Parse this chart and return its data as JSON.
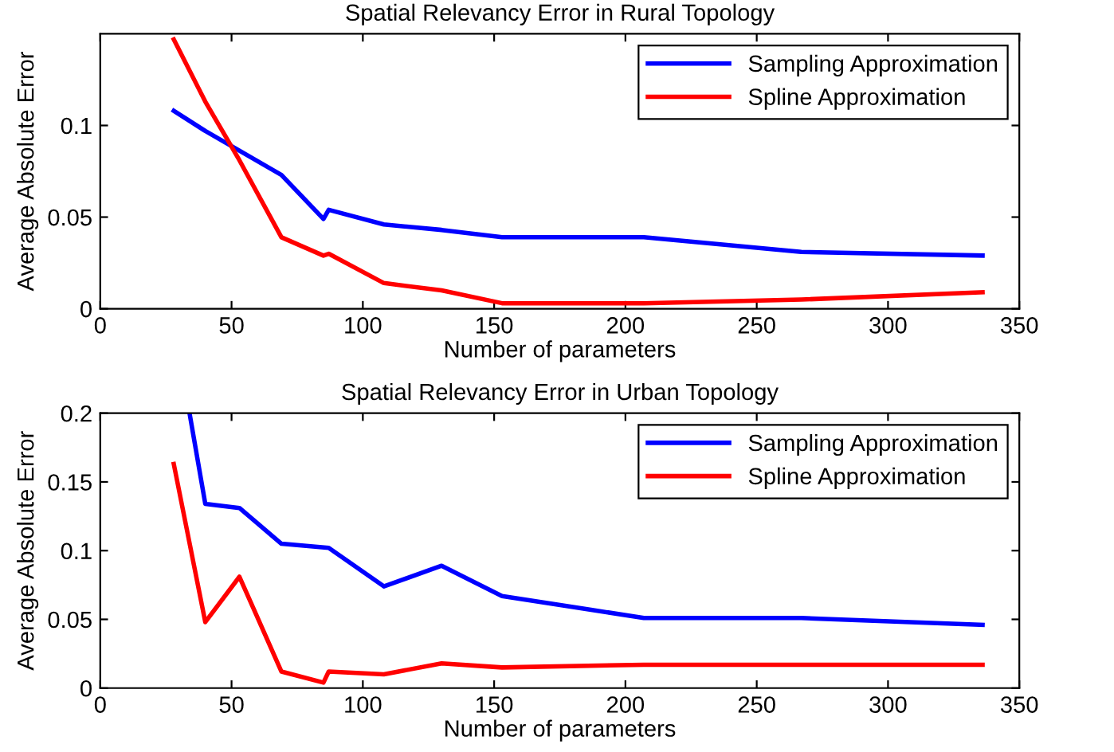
{
  "chart_data": [
    {
      "type": "line",
      "title": "Spatial Relevancy Error in Rural Topology",
      "xlabel": "Number of parameters",
      "ylabel": "Average Absolute Error",
      "xlim": [
        0,
        350
      ],
      "xticks": [
        0,
        50,
        100,
        150,
        200,
        250,
        300,
        350
      ],
      "ylim": [
        0,
        0.15
      ],
      "yticks": [
        0,
        0.05,
        0.1
      ],
      "grid": false,
      "legend": "top right",
      "series": [
        {
          "name": "Sampling Approximation",
          "color": "#0000ff",
          "x": [
            28,
            40,
            69,
            85,
            87,
            108,
            130,
            153,
            207,
            267,
            336
          ],
          "values": [
            0.108,
            0.097,
            0.073,
            0.049,
            0.054,
            0.046,
            0.043,
            0.039,
            0.039,
            0.031,
            0.029
          ]
        },
        {
          "name": "Spline Approximation",
          "color": "#ff0000",
          "x": [
            28,
            40,
            53,
            69,
            85,
            87,
            108,
            130,
            153,
            207,
            267,
            336
          ],
          "values": [
            0.147,
            0.113,
            0.081,
            0.039,
            0.029,
            0.03,
            0.014,
            0.01,
            0.003,
            0.003,
            0.005,
            0.009
          ]
        }
      ]
    },
    {
      "type": "line",
      "title": "Spatial Relevancy Error in Urban Topology",
      "xlabel": "Number of parameters",
      "ylabel": "Average Absolute Error",
      "xlim": [
        0,
        350
      ],
      "xticks": [
        0,
        50,
        100,
        150,
        200,
        250,
        300,
        350
      ],
      "ylim": [
        0,
        0.2
      ],
      "yticks": [
        0,
        0.05,
        0.1,
        0.15,
        0.2
      ],
      "grid": false,
      "legend": "top right",
      "series": [
        {
          "name": "Sampling Approximation",
          "color": "#0000ff",
          "x": [
            34,
            40,
            53,
            69,
            87,
            108,
            130,
            153,
            207,
            267,
            336
          ],
          "values": [
            0.2,
            0.134,
            0.131,
            0.105,
            0.102,
            0.074,
            0.089,
            0.067,
            0.051,
            0.051,
            0.046
          ]
        },
        {
          "name": "Spline Approximation",
          "color": "#ff0000",
          "x": [
            28,
            40,
            53,
            69,
            85,
            87,
            108,
            130,
            153,
            207,
            267,
            336
          ],
          "values": [
            0.163,
            0.048,
            0.081,
            0.012,
            0.004,
            0.012,
            0.01,
            0.018,
            0.015,
            0.017,
            0.017,
            0.017
          ]
        }
      ]
    }
  ]
}
